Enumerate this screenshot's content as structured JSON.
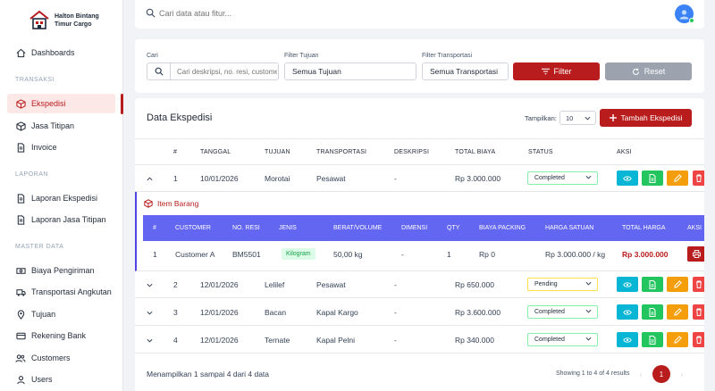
{
  "brand": {
    "line1": "Halton Bintang",
    "line2": "Timur Cargo"
  },
  "topbar": {
    "search_placeholder": "Cari data atau fitur..."
  },
  "sidebar": {
    "dashboards": "Dashboards",
    "section_transaksi": "TRANSAKSI",
    "ekspedisi": "Ekspedisi",
    "jasa_titipan": "Jasa Titipan",
    "invoice": "Invoice",
    "section_laporan": "LAPORAN",
    "laporan_ekspedisi": "Laporan Ekspedisi",
    "laporan_jasa_titipan": "Laporan Jasa Titipan",
    "section_master": "MASTER DATA",
    "biaya_pengiriman": "Biaya Pengiriman",
    "transportasi_angkutan": "Transportasi Angkutan",
    "tujuan": "Tujuan",
    "rekening_bank": "Rekening Bank",
    "customers": "Customers",
    "users": "Users"
  },
  "filter": {
    "cari_label": "Cari",
    "cari_placeholder": "Cari deskripsi, no. resi, customer...",
    "tujuan_label": "Filter Tujuan",
    "tujuan_value": "Semua Tujuan",
    "transport_label": "Filter Transportasi",
    "transport_value": "Semua Transportasi",
    "filter_button": "Filter",
    "reset_button": "Reset"
  },
  "main": {
    "title": "Data Ekspedisi",
    "show_label": "Tampilkan:",
    "show_value": "10",
    "add_button": "Tambah Ekspedisi",
    "columns": [
      "#",
      "TANGGAL",
      "TUJUAN",
      "TRANSPORTASI",
      "DESKRIPSI",
      "TOTAL BIAYA",
      "STATUS",
      "AKSI"
    ],
    "rows": [
      {
        "no": "1",
        "tanggal": "10/01/2026",
        "tujuan": "Morotai",
        "transportasi": "Pesawat",
        "deskripsi": "-",
        "total": "Rp 3.000.000",
        "status": "Completed"
      },
      {
        "no": "2",
        "tanggal": "12/01/2026",
        "tujuan": "Lelilef",
        "transportasi": "Pesawat",
        "deskripsi": "-",
        "total": "Rp 650.000",
        "status": "Pending"
      },
      {
        "no": "3",
        "tanggal": "12/01/2026",
        "tujuan": "Bacan",
        "transportasi": "Kapal Kargo",
        "deskripsi": "-",
        "total": "Rp 3.600.000",
        "status": "Completed"
      },
      {
        "no": "4",
        "tanggal": "12/01/2026",
        "tujuan": "Ternate",
        "transportasi": "Kapal Pelni",
        "deskripsi": "-",
        "total": "Rp 340.000",
        "status": "Completed"
      }
    ],
    "item_barang": {
      "title": "Item Barang",
      "columns": [
        "#",
        "CUSTOMER",
        "NO. RESI",
        "JENIS",
        "BERAT/VOLUME",
        "DIMENSI",
        "QTY",
        "BIAYA PACKING",
        "HARGA SATUAN",
        "TOTAL HARGA",
        "AKSI"
      ],
      "row": {
        "no": "1",
        "customer": "Customer A",
        "resi": "BM5501",
        "jenis": "Kilogram",
        "berat": "50,00 kg",
        "dimensi": "-",
        "qty": "1",
        "packing": "Rp 0",
        "satuan": "Rp 3.000.000 / kg",
        "total": "Rp 3.000.000"
      }
    },
    "footer": {
      "summary": "Menampilkan 1 sampai 4 dari 4 data",
      "showing": "Showing 1 to 4 of 4 results",
      "prev": "‹",
      "page": "1",
      "next": "›"
    }
  },
  "colors": {
    "accent": "#b91c1c",
    "indigo": "#6366f1",
    "view": "#06b6d4",
    "doc": "#22c55e",
    "edit": "#f59e0b",
    "delete": "#ef4444"
  },
  "icons": [
    "home-icon",
    "box-icon",
    "file-icon",
    "money-icon",
    "truck-icon",
    "location-icon",
    "card-icon",
    "users-icon",
    "user-icon",
    "search-icon",
    "filter-icon",
    "reset-icon",
    "plus-icon",
    "eye-icon",
    "edit-icon",
    "print-icon",
    "chevron-down-icon",
    "chevron-up-icon"
  ]
}
